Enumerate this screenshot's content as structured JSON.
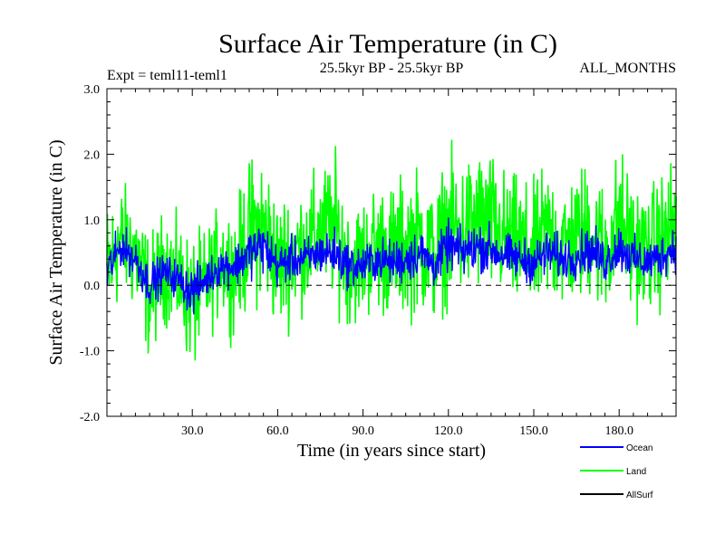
{
  "chart_data": {
    "type": "line",
    "title": "Surface Air Temperature (in C)",
    "subtitle_left": "Expt = teml11-teml1",
    "subtitle_center": "25.5kyr BP - 25.5kyr BP",
    "subtitle_right": "ALL_MONTHS",
    "xlabel": "Time (in years since start)",
    "ylabel": "Surface Air Temperature (in C)",
    "xlim": [
      0,
      200
    ],
    "ylim": [
      -2.0,
      3.0
    ],
    "x_ticks": [
      30,
      60,
      90,
      120,
      150,
      180
    ],
    "x_tick_labels": [
      "30.0",
      "60.0",
      "90.0",
      "120.0",
      "150.0",
      "180.0"
    ],
    "y_ticks": [
      -2,
      -1,
      0,
      1,
      2,
      3
    ],
    "y_tick_labels": [
      "-2.0",
      "-1.0",
      "0.0",
      "1.0",
      "2.0",
      "3.0"
    ],
    "zero_line": {
      "y": 0,
      "style": "dashed"
    },
    "series": [
      {
        "name": "Land",
        "color": "#00ff00",
        "x": [
          0,
          5,
          10,
          15,
          20,
          25,
          30,
          35,
          40,
          45,
          50,
          55,
          60,
          65,
          70,
          75,
          80,
          85,
          90,
          95,
          100,
          105,
          110,
          115,
          120,
          125,
          130,
          135,
          140,
          145,
          150,
          155,
          160,
          165,
          170,
          175,
          180,
          185,
          190,
          195,
          200
        ],
        "values": [
          0.2,
          0.7,
          0.5,
          -0.2,
          0.3,
          0.1,
          -0.3,
          0.0,
          0.4,
          0.2,
          0.8,
          0.9,
          0.3,
          0.5,
          0.6,
          0.8,
          0.9,
          0.3,
          0.4,
          0.6,
          0.5,
          0.6,
          0.7,
          0.4,
          0.9,
          0.8,
          1.0,
          0.9,
          0.7,
          0.6,
          0.5,
          0.8,
          0.6,
          0.7,
          0.9,
          0.5,
          1.0,
          0.6,
          0.5,
          0.7,
          0.9
        ],
        "spread": [
          1.3,
          1.0,
          1.1,
          1.1,
          1.0,
          1.0,
          1.2,
          1.0,
          1.0,
          1.1,
          1.3,
          1.4,
          1.2,
          1.2,
          1.1,
          1.2,
          1.3,
          1.1,
          1.1,
          1.2,
          1.2,
          1.3,
          1.3,
          1.2,
          1.3,
          1.3,
          1.3,
          1.3,
          1.2,
          1.2,
          1.2,
          1.3,
          1.2,
          1.2,
          1.3,
          1.2,
          1.3,
          1.2,
          1.1,
          1.2,
          1.3
        ]
      },
      {
        "name": "Ocean",
        "color": "#0000ff",
        "x": [
          0,
          5,
          10,
          15,
          20,
          25,
          30,
          35,
          40,
          45,
          50,
          55,
          60,
          65,
          70,
          75,
          80,
          85,
          90,
          95,
          100,
          105,
          110,
          115,
          120,
          125,
          130,
          135,
          140,
          145,
          150,
          155,
          160,
          165,
          170,
          175,
          180,
          185,
          190,
          195,
          200
        ],
        "values": [
          0.2,
          0.6,
          0.4,
          0.0,
          0.2,
          0.1,
          -0.1,
          0.1,
          0.3,
          0.3,
          0.5,
          0.6,
          0.3,
          0.4,
          0.4,
          0.5,
          0.5,
          0.3,
          0.3,
          0.4,
          0.35,
          0.4,
          0.5,
          0.3,
          0.6,
          0.5,
          0.6,
          0.55,
          0.45,
          0.4,
          0.35,
          0.5,
          0.4,
          0.45,
          0.55,
          0.35,
          0.6,
          0.4,
          0.35,
          0.45,
          0.6
        ],
        "spread": [
          0.45,
          0.35,
          0.4,
          0.4,
          0.35,
          0.35,
          0.45,
          0.35,
          0.35,
          0.4,
          0.45,
          0.5,
          0.4,
          0.4,
          0.4,
          0.4,
          0.45,
          0.4,
          0.4,
          0.4,
          0.4,
          0.45,
          0.45,
          0.4,
          0.45,
          0.45,
          0.45,
          0.45,
          0.4,
          0.4,
          0.4,
          0.45,
          0.4,
          0.4,
          0.45,
          0.4,
          0.45,
          0.4,
          0.4,
          0.4,
          0.45
        ]
      },
      {
        "name": "AllSurf",
        "color": "#000000",
        "x": [],
        "values": []
      }
    ],
    "legend": [
      {
        "label": "Ocean",
        "color": "#0000ff"
      },
      {
        "label": "Land",
        "color": "#00ff00"
      },
      {
        "label": "AllSurf",
        "color": "#000000"
      }
    ],
    "legend_position": "bottom-right",
    "grid": false
  }
}
